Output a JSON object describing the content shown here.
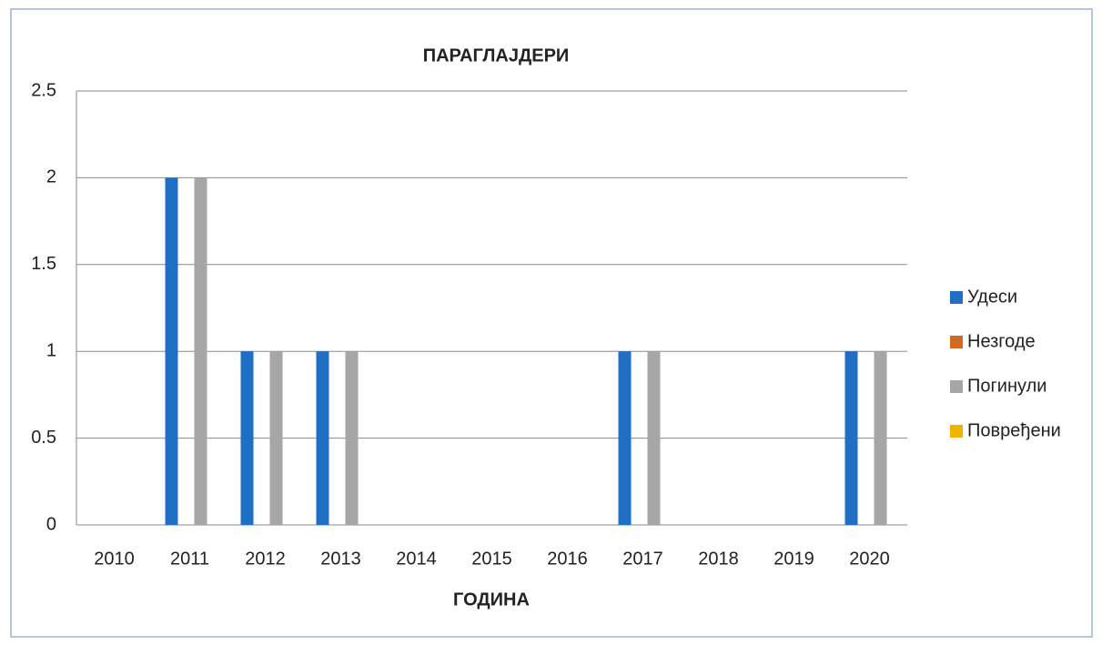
{
  "chart_data": {
    "type": "bar",
    "title": "ПАРАГЛАЈДЕРИ",
    "x_label": "ГОДИНА",
    "categories": [
      "2010",
      "2011",
      "2012",
      "2013",
      "2014",
      "2015",
      "2016",
      "2017",
      "2018",
      "2019",
      "2020"
    ],
    "series": [
      {
        "name": "Удеси",
        "color": "#1f6fc5",
        "values": [
          0,
          2,
          1,
          1,
          0,
          0,
          0,
          1,
          0,
          0,
          1
        ]
      },
      {
        "name": "Незгоде",
        "color": "#d2691e",
        "values": [
          0,
          0,
          0,
          0,
          0,
          0,
          0,
          0,
          0,
          0,
          0
        ]
      },
      {
        "name": "Погинули",
        "color": "#a6a6a6",
        "values": [
          0,
          2,
          1,
          1,
          0,
          0,
          0,
          1,
          0,
          0,
          1
        ]
      },
      {
        "name": "Повређени",
        "color": "#f0b400",
        "values": [
          0,
          0,
          0,
          0,
          0,
          0,
          0,
          0,
          0,
          0,
          0
        ]
      }
    ],
    "ylim": [
      0,
      2.5
    ],
    "yticks": [
      0,
      0.5,
      1,
      1.5,
      2,
      2.5
    ],
    "grid": true,
    "legend": "right"
  }
}
